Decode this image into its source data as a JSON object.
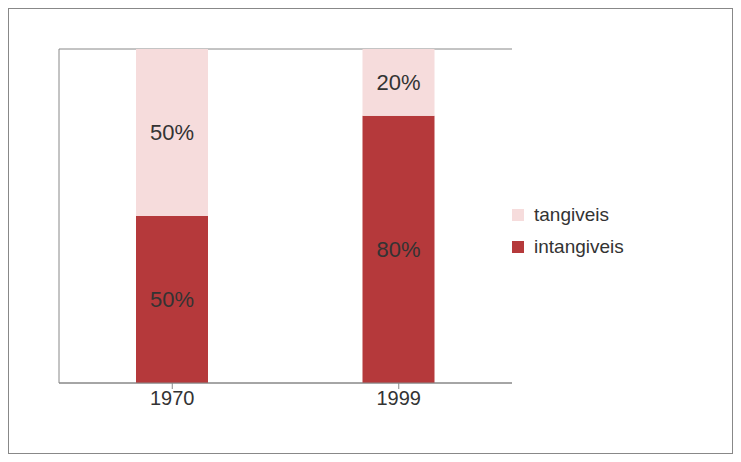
{
  "chart_data": {
    "type": "bar",
    "stacked": true,
    "categories": [
      "1970",
      "1999"
    ],
    "series": [
      {
        "name": "intangiveis",
        "color": "#b5393b",
        "values": [
          50,
          80
        ],
        "value_labels": [
          "50%",
          "80%"
        ]
      },
      {
        "name": "tangiveis",
        "color": "#f6dcdc",
        "values": [
          50,
          20
        ],
        "value_labels": [
          "50%",
          "20%"
        ]
      }
    ],
    "ylim": [
      0,
      100
    ],
    "yticks": [
      0,
      20,
      40,
      60,
      80,
      100
    ],
    "grid": true,
    "legend": "right",
    "data_labels": true,
    "tick_labels": "x"
  }
}
